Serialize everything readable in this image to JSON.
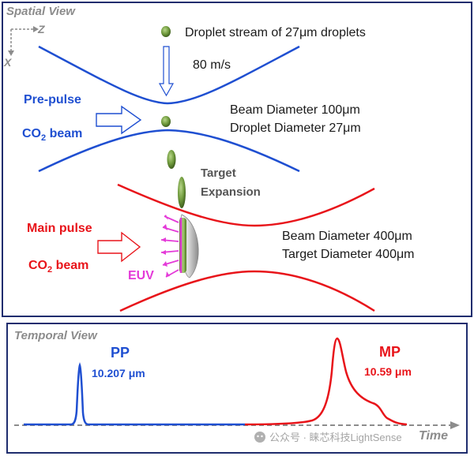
{
  "spatial": {
    "title": "Spatial View",
    "axis_z": "Z",
    "axis_x": "X",
    "droplet_stream": "Droplet stream of 27μm droplets",
    "speed": "80 m/s",
    "prepulse_line1": "Pre-pulse",
    "prepulse_line2_a": "CO",
    "prepulse_line2_sub": "2",
    "prepulse_line2_b": " beam",
    "beam1_line1": "Beam Diameter 100μm",
    "beam1_line2": "Droplet Diameter 27μm",
    "target_line1": "Target",
    "target_line2": "Expansion",
    "mainpulse_line1": "Main pulse",
    "mainpulse_line2_a": "CO",
    "mainpulse_line2_sub": "2",
    "mainpulse_line2_b": " beam",
    "euv": "EUV",
    "beam2_line1": "Beam Diameter 400μm",
    "beam2_line2": "Target Diameter 400μm"
  },
  "temporal": {
    "title": "Temporal View",
    "pp_label": "PP",
    "pp_wavelength": "10.207 μm",
    "mp_label": "MP",
    "mp_wavelength": "10.59 μm",
    "time_label": "Time"
  },
  "watermark": "公众号 · 睐芯科技LightSense",
  "colors": {
    "blue": "#1f4fd1",
    "red": "#e8141a",
    "magenta": "#e43ad8",
    "frame": "#1f2d6e",
    "gray": "#8c8c8c",
    "droplet": "#6f9a3c"
  }
}
